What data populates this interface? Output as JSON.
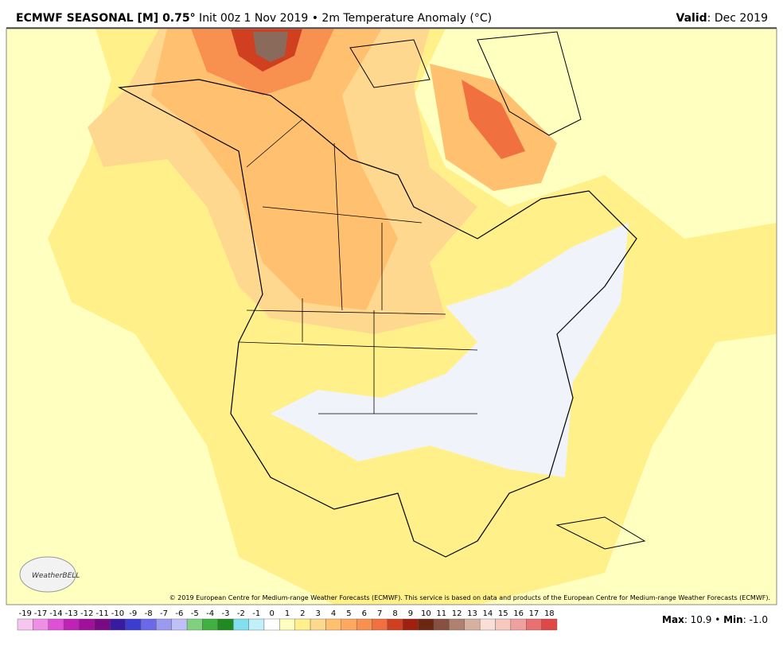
{
  "header": {
    "title_bold": "ECMWF SEASONAL [M] 0.75°",
    "title_rest": " Init 00z 1 Nov 2019 • 2m Temperature Anomaly (°C)",
    "valid_label": "Valid",
    "valid_value": ": Dec 2019"
  },
  "logo": {
    "text": "WeatherBELL"
  },
  "copyright": "© 2019 European Centre for Medium-range Weather Forecasts (ECMWF). This service is based on data and products of the European Centre for Medium-range Weather Forecasts (ECMWF).",
  "colorbar": {
    "labels": [
      -19,
      -17,
      -14,
      -13,
      -12,
      -11,
      -10,
      -9,
      -8,
      -7,
      -6,
      -5,
      -4,
      -3,
      -2,
      -1,
      0,
      1,
      2,
      3,
      4,
      5,
      6,
      7,
      8,
      9,
      10,
      11,
      12,
      13,
      14,
      15,
      16,
      17,
      18
    ],
    "colors": [
      "#f7c6f0",
      "#ee8fe6",
      "#e050d6",
      "#c022b8",
      "#a0109a",
      "#7a0a84",
      "#3a1aa0",
      "#3c3cd0",
      "#6a6ae8",
      "#9a9af0",
      "#c0c0f8",
      "#80d080",
      "#40b040",
      "#208a20",
      "#80e0f0",
      "#c0f0f8",
      "#ffffff",
      "#ffffc0",
      "#fff08a",
      "#ffd890",
      "#ffc070",
      "#ffa860",
      "#f89050",
      "#f07040",
      "#d04020",
      "#a02010",
      "#6a2810",
      "#885040",
      "#b08070",
      "#d8b0a0",
      "#f8e0d8",
      "#f8c8c0",
      "#f0a0a0",
      "#e87070",
      "#e04848"
    ]
  },
  "stats": {
    "max_label": "Max",
    "max_value": ": 10.9 • ",
    "min_label": "Min",
    "min_value": ": -1.0"
  }
}
